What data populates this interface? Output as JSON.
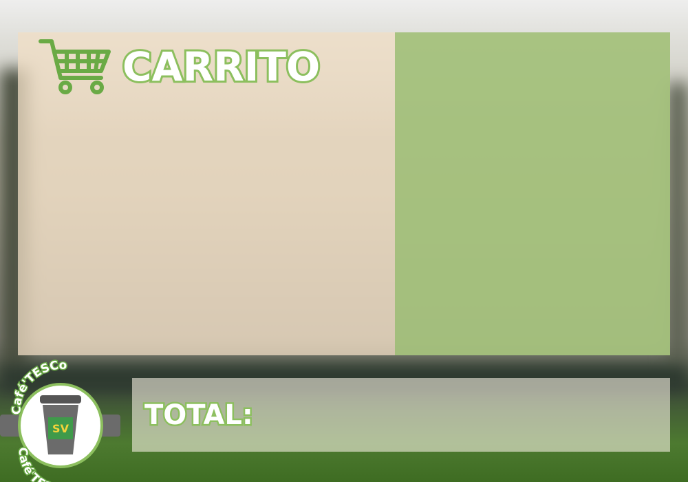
{
  "header": {
    "title": "CARRITO"
  },
  "total": {
    "label": "TOTAL:"
  },
  "logo": {
    "top_text": "Café'TESCo",
    "bottom_text": "Café'TESCo"
  }
}
